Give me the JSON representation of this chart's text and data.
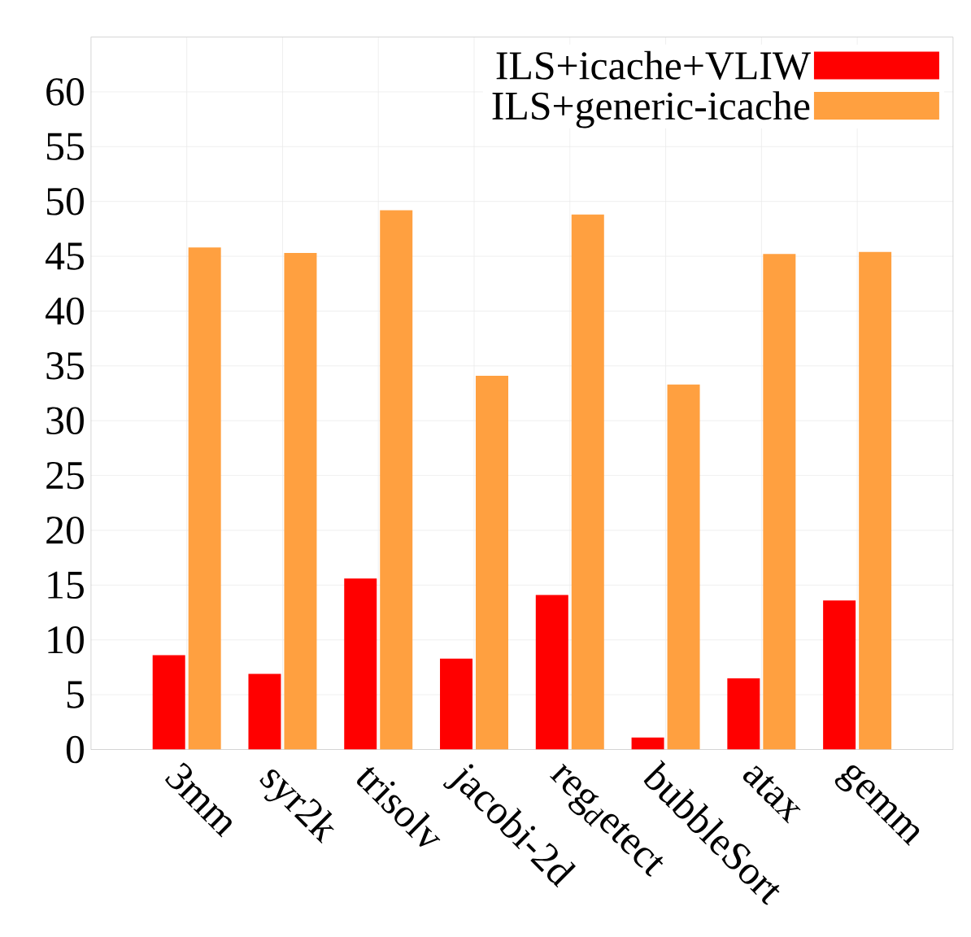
{
  "chart_data": {
    "type": "bar",
    "categories": [
      "3mm",
      "syr2k",
      "trisolv",
      "jacobi-2d",
      "reg$_{d}$etect",
      "bubbleSort",
      "atax",
      "gemm"
    ],
    "series": [
      {
        "name": "ILS+icache+VLIW",
        "color": "#ff0000",
        "values": [
          8.6,
          6.9,
          15.6,
          8.3,
          14.1,
          1.1,
          6.5,
          13.6
        ]
      },
      {
        "name": "ILS+generic-icache",
        "color": "#ffa040",
        "values": [
          45.8,
          45.3,
          49.2,
          34.1,
          48.8,
          33.3,
          45.2,
          45.4
        ]
      }
    ],
    "ylim": [
      0,
      65
    ],
    "yticks": [
      0,
      5,
      10,
      15,
      20,
      25,
      30,
      35,
      40,
      45,
      50,
      55,
      60
    ],
    "grid": true,
    "legend": "top right"
  }
}
